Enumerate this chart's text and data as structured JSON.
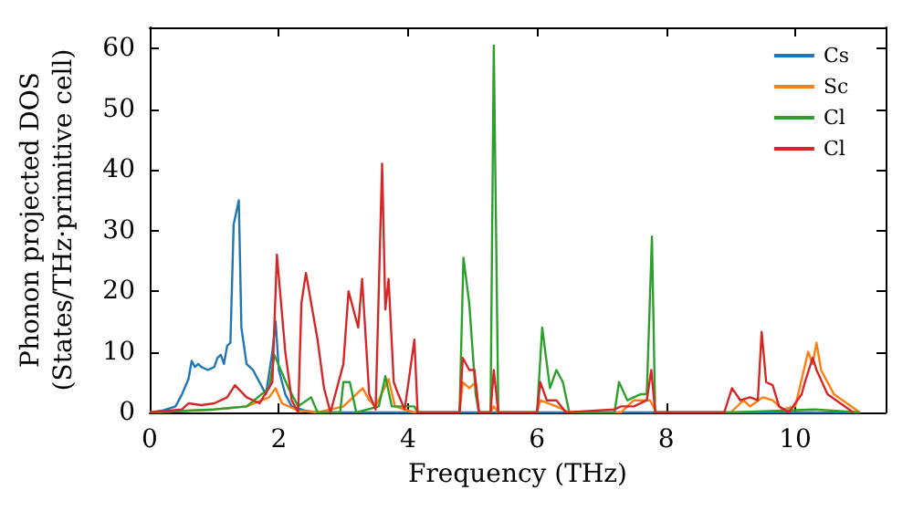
{
  "chart_data": {
    "type": "line",
    "xlabel": "Frequency (THz)",
    "ylabel": "Phonon projected DOS\n(States/THz·primitive cell)",
    "xlim": [
      0,
      11.4
    ],
    "xticks": [
      0,
      2,
      4,
      6,
      8,
      10
    ],
    "ylim": [
      0,
      63.5
    ],
    "yticks": [
      0,
      10,
      20,
      30,
      40,
      50,
      60
    ],
    "grid": false,
    "legend": "top right",
    "marker": "none",
    "line_style": "solid",
    "series": [
      {
        "name": "Cs",
        "color": "#1f77b4",
        "x": [
          0,
          0.2,
          0.4,
          0.5,
          0.6,
          0.65,
          0.7,
          0.75,
          0.8,
          0.9,
          1.0,
          1.05,
          1.1,
          1.15,
          1.2,
          1.25,
          1.3,
          1.38,
          1.42,
          1.5,
          1.6,
          1.7,
          1.8,
          1.9,
          1.95,
          2.0,
          2.1,
          2.2,
          2.4,
          2.6,
          4.0,
          6.0,
          8.0,
          10.0,
          11.0
        ],
        "values": [
          0,
          0.3,
          1,
          3,
          5.5,
          8.5,
          7.5,
          8,
          7.5,
          7,
          7.5,
          9,
          9.5,
          8,
          11,
          11.5,
          31,
          35,
          14,
          8,
          7,
          5,
          3,
          10,
          15,
          7,
          3,
          1,
          0.3,
          0,
          0,
          0,
          0,
          0,
          0
        ]
      },
      {
        "name": "Sc",
        "color": "#ff7f0e",
        "x": [
          0,
          1.0,
          1.5,
          1.85,
          1.95,
          2.05,
          2.3,
          2.6,
          3.0,
          3.3,
          3.4,
          3.5,
          3.7,
          3.8,
          4.1,
          4.8,
          4.85,
          4.95,
          5.05,
          5.1,
          5.28,
          5.33,
          5.4,
          6.0,
          6.05,
          6.3,
          6.5,
          7.3,
          7.5,
          7.75,
          7.85,
          9.0,
          9.2,
          9.3,
          9.5,
          9.65,
          9.8,
          10.0,
          10.2,
          10.27,
          10.33,
          10.4,
          10.6,
          10.8,
          11.0
        ],
        "values": [
          0,
          0.5,
          1,
          2.5,
          4,
          1.5,
          0.3,
          0,
          1,
          4,
          2,
          1,
          5.5,
          1,
          0,
          0,
          5,
          4,
          5,
          0,
          0,
          1,
          0,
          0,
          2,
          1,
          0,
          0,
          2,
          2,
          0,
          0,
          2,
          1,
          2.5,
          2,
          0.5,
          1,
          10,
          8,
          11.5,
          7,
          3,
          1.5,
          0
        ]
      },
      {
        "name": "Cl",
        "color": "#2ca02c",
        "x": [
          0,
          1.0,
          1.5,
          1.85,
          1.93,
          2.15,
          2.3,
          2.5,
          2.6,
          2.95,
          3.0,
          3.1,
          3.2,
          3.55,
          3.65,
          3.75,
          4.1,
          4.15,
          4.8,
          4.86,
          4.95,
          5.05,
          5.1,
          5.28,
          5.33,
          5.4,
          6.0,
          6.08,
          6.2,
          6.3,
          6.4,
          6.5,
          7.2,
          7.27,
          7.4,
          7.6,
          7.7,
          7.78,
          7.83,
          9.0,
          10.3,
          11.0
        ],
        "values": [
          0,
          0.5,
          1,
          4,
          9.5,
          4,
          1,
          2.5,
          0,
          0,
          5,
          5,
          0,
          1,
          6,
          1,
          1,
          0,
          0,
          25.5,
          18,
          3,
          0,
          0,
          60.5,
          0,
          0,
          14,
          4,
          7,
          5,
          0,
          0,
          5,
          2,
          3,
          3,
          29,
          0,
          0,
          0.5,
          0
        ]
      },
      {
        "name": "Cl",
        "color": "#d62728",
        "x": [
          0,
          0.5,
          0.6,
          0.8,
          1.0,
          1.2,
          1.32,
          1.5,
          1.7,
          1.9,
          1.97,
          2.1,
          2.2,
          2.3,
          2.35,
          2.42,
          2.6,
          2.7,
          2.8,
          3.0,
          3.08,
          3.23,
          3.29,
          3.4,
          3.5,
          3.6,
          3.65,
          3.7,
          3.78,
          3.85,
          3.95,
          4.1,
          4.15,
          4.8,
          4.85,
          4.95,
          5.03,
          5.1,
          5.28,
          5.33,
          5.4,
          6.0,
          6.05,
          6.15,
          6.3,
          6.45,
          7.2,
          7.3,
          7.5,
          7.7,
          7.77,
          7.83,
          8.9,
          9.02,
          9.15,
          9.3,
          9.42,
          9.48,
          9.55,
          9.65,
          9.75,
          9.9,
          10.1,
          10.15,
          10.27,
          10.33,
          10.5,
          10.7,
          10.9
        ],
        "values": [
          0,
          0.5,
          1.5,
          1.2,
          1.5,
          2.5,
          4.5,
          2.5,
          1.5,
          5,
          26,
          10,
          2,
          0,
          18,
          23,
          12,
          4,
          0,
          8,
          20,
          14,
          22,
          3,
          0.5,
          41,
          17,
          22,
          5,
          3,
          0.5,
          12,
          0,
          0,
          9,
          7,
          7,
          0,
          0,
          7,
          0,
          0,
          5,
          2,
          2,
          0,
          0.5,
          1,
          1,
          2,
          7,
          0,
          0,
          4,
          2,
          2.5,
          2,
          13.3,
          5,
          4.5,
          1,
          0,
          3,
          5,
          9,
          7,
          3,
          1.5,
          0
        ]
      }
    ]
  }
}
